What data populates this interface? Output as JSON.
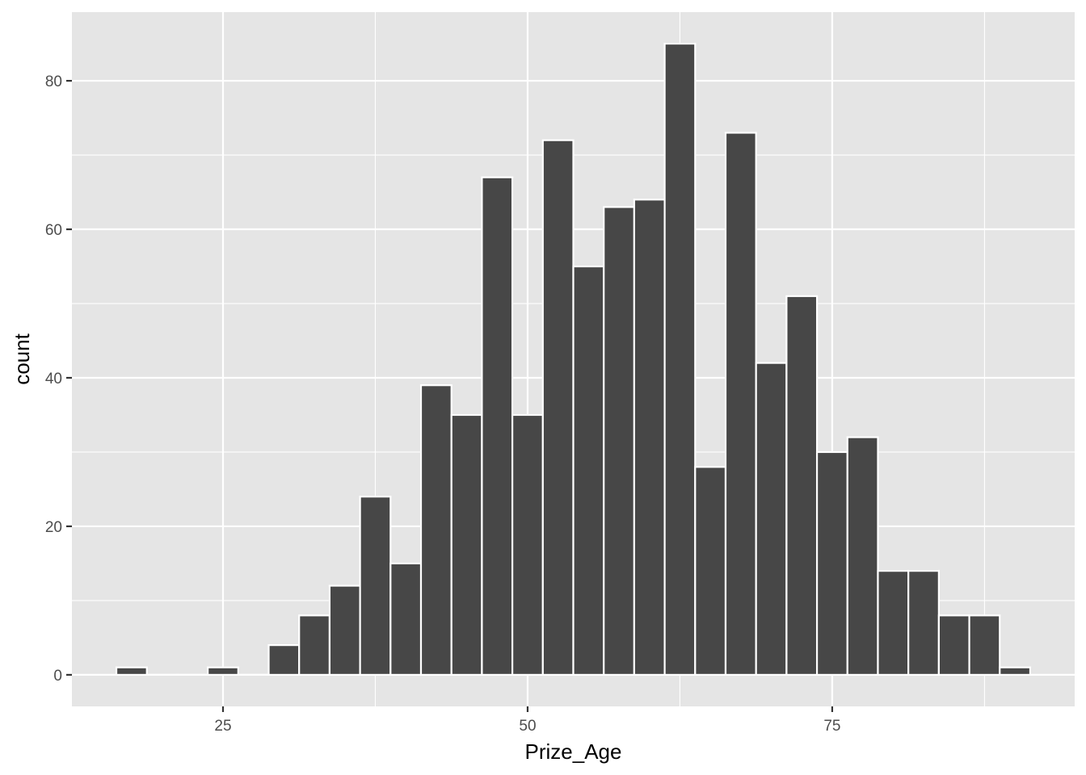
{
  "chart_data": {
    "type": "bar",
    "subtype": "histogram",
    "xlabel": "Prize_Age",
    "ylabel": "count",
    "bin_width": 2.5,
    "bins": [
      {
        "center": 17.5,
        "count": 1
      },
      {
        "center": 20.0,
        "count": 0
      },
      {
        "center": 22.5,
        "count": 0
      },
      {
        "center": 25.0,
        "count": 1
      },
      {
        "center": 27.5,
        "count": 0
      },
      {
        "center": 30.0,
        "count": 4
      },
      {
        "center": 32.5,
        "count": 8
      },
      {
        "center": 35.0,
        "count": 12
      },
      {
        "center": 37.5,
        "count": 24
      },
      {
        "center": 40.0,
        "count": 15
      },
      {
        "center": 42.5,
        "count": 39
      },
      {
        "center": 45.0,
        "count": 35
      },
      {
        "center": 47.5,
        "count": 67
      },
      {
        "center": 50.0,
        "count": 35
      },
      {
        "center": 52.5,
        "count": 72
      },
      {
        "center": 55.0,
        "count": 55
      },
      {
        "center": 57.5,
        "count": 63
      },
      {
        "center": 60.0,
        "count": 64
      },
      {
        "center": 62.5,
        "count": 85
      },
      {
        "center": 65.0,
        "count": 28
      },
      {
        "center": 67.5,
        "count": 73
      },
      {
        "center": 70.0,
        "count": 42
      },
      {
        "center": 72.5,
        "count": 51
      },
      {
        "center": 75.0,
        "count": 30
      },
      {
        "center": 77.5,
        "count": 32
      },
      {
        "center": 80.0,
        "count": 14
      },
      {
        "center": 82.5,
        "count": 14
      },
      {
        "center": 85.0,
        "count": 8
      },
      {
        "center": 87.5,
        "count": 8
      },
      {
        "center": 90.0,
        "count": 1
      }
    ],
    "xlim": [
      12.6,
      94.9
    ],
    "ylim": [
      -4.25,
      89.25
    ],
    "x_ticks": [
      25,
      50,
      75
    ],
    "x_tick_labels": [
      "25",
      "50",
      "75"
    ],
    "y_ticks": [
      0,
      20,
      40,
      60,
      80
    ],
    "y_tick_labels": [
      "0",
      "20",
      "40",
      "60",
      "80"
    ],
    "grid": true,
    "legend": "none",
    "colors": {
      "panel_background": "#e5e5e5",
      "grid_line": "#ffffff",
      "bar_fill": "#474747",
      "bar_outline": "#ffffff"
    }
  }
}
